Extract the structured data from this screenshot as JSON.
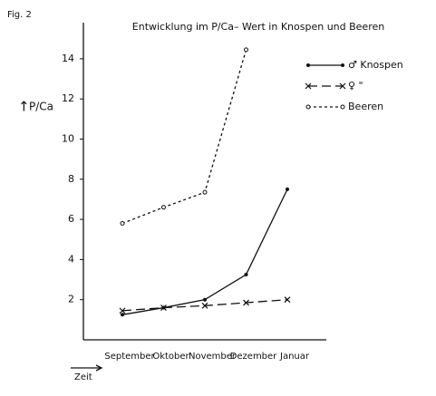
{
  "chart_data": {
    "type": "line",
    "figure_label": "Fig. 2",
    "title": "Entwicklung im P/Ca– Wert in Knospen und Beeren",
    "ylabel": "P/Ca",
    "xlabel": "Zeit",
    "categories": [
      "September",
      "Oktober",
      "November",
      "Dezember",
      "Januar"
    ],
    "series": [
      {
        "name": "♂ Knospen",
        "color": "#111111",
        "style": "solid",
        "marker": "dot",
        "values": [
          1.25,
          1.6,
          2.0,
          3.25,
          7.5
        ]
      },
      {
        "name": "♀    \"",
        "color": "#111111",
        "style": "dashed",
        "marker": "x",
        "values": [
          1.45,
          1.6,
          1.7,
          1.85,
          2.0
        ]
      },
      {
        "name": "Beeren",
        "color": "#111111",
        "style": "dotted",
        "marker": "circle",
        "values": [
          5.8,
          6.6,
          7.35,
          14.45,
          null
        ]
      }
    ],
    "ylim": [
      0,
      15.8
    ],
    "yticks": [
      2,
      4,
      6,
      8,
      10,
      12,
      14
    ],
    "grid": false,
    "legend": "upper right"
  }
}
